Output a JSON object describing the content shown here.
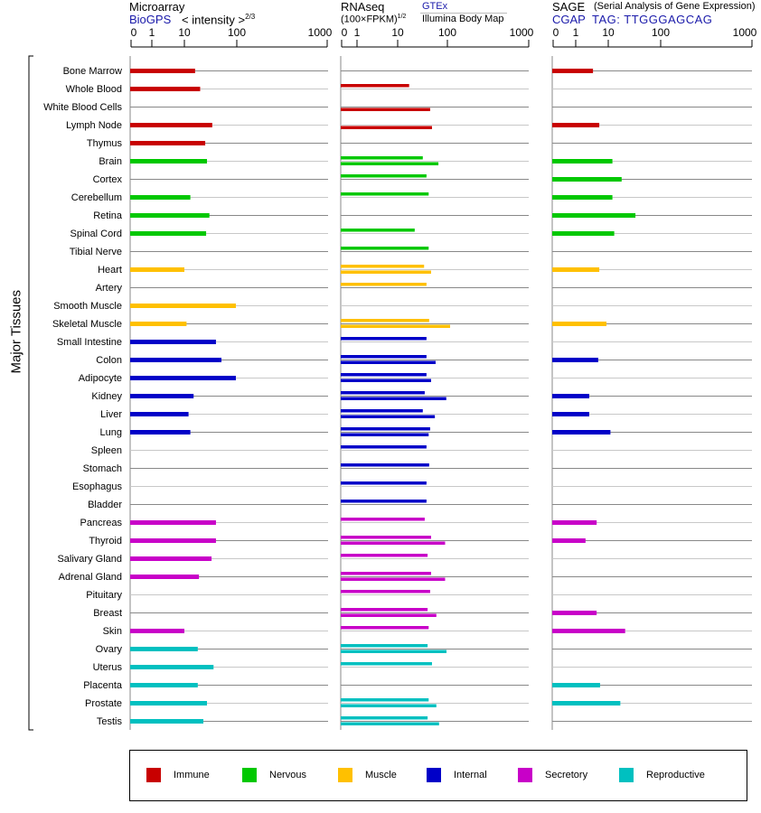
{
  "chart_data": {
    "type": "bar",
    "ylabel": "Major Tissues",
    "categories": [
      "Bone Marrow",
      "Whole Blood",
      "White Blood Cells",
      "Lymph Node",
      "Thymus",
      "Brain",
      "Cortex",
      "Cerebellum",
      "Retina",
      "Spinal Cord",
      "Tibial Nerve",
      "Heart",
      "Artery",
      "Smooth Muscle",
      "Skeletal Muscle",
      "Small Intestine",
      "Colon",
      "Adipocyte",
      "Kidney",
      "Liver",
      "Lung",
      "Spleen",
      "Stomach",
      "Esophagus",
      "Bladder",
      "Pancreas",
      "Thyroid",
      "Salivary Gland",
      "Adrenal Gland",
      "Pituitary",
      "Breast",
      "Skin",
      "Ovary",
      "Uterus",
      "Placenta",
      "Prostate",
      "Testis"
    ],
    "groups": [
      "Immune",
      "Immune",
      "Immune",
      "Immune",
      "Immune",
      "Nervous",
      "Nervous",
      "Nervous",
      "Nervous",
      "Nervous",
      "Nervous",
      "Muscle",
      "Muscle",
      "Muscle",
      "Muscle",
      "Internal",
      "Internal",
      "Internal",
      "Internal",
      "Internal",
      "Internal",
      "Internal",
      "Internal",
      "Internal",
      "Internal",
      "Secretory",
      "Secretory",
      "Secretory",
      "Secretory",
      "Secretory",
      "Secretory",
      "Secretory",
      "Reproductive",
      "Reproductive",
      "Reproductive",
      "Reproductive",
      "Reproductive"
    ],
    "ticks": [
      0,
      1,
      10,
      100,
      1000
    ],
    "xlim": [
      0,
      1000
    ],
    "panels": [
      {
        "id": "microarray",
        "title": "Microarray",
        "source": "BioGPS",
        "unit": "< intensity >",
        "unit_exp": "2/3",
        "series": [
          {
            "name": "BioGPS",
            "values": [
              16,
              20,
              null,
              34,
              25,
              27,
              null,
              13,
              30,
              26,
              null,
              10,
              null,
              96,
              11,
              40,
              51,
              96,
              15,
              12,
              13,
              null,
              null,
              null,
              null,
              40,
              40,
              33,
              19,
              null,
              null,
              10,
              18,
              36,
              18,
              27,
              23
            ]
          }
        ]
      },
      {
        "id": "rnaseq",
        "title": "RNAseq",
        "unit": "(100×FPKM)",
        "unit_exp": "1/2",
        "source": "GTEx",
        "source2": "Illumina Body Map",
        "series": [
          {
            "name": "GTEx",
            "values": [
              null,
              17,
              null,
              null,
              null,
              32,
              38,
              42,
              null,
              22,
              42,
              34,
              38,
              null,
              43,
              38,
              38,
              38,
              35,
              32,
              45,
              38,
              43,
              38,
              38,
              35,
              47,
              40,
              47,
              45,
              40,
              42,
              40,
              49,
              null,
              42,
              40
            ]
          },
          {
            "name": "Illumina Body Map",
            "values": [
              null,
              null,
              45,
              49,
              null,
              66,
              null,
              null,
              null,
              null,
              null,
              47,
              null,
              null,
              108,
              null,
              58,
              47,
              95,
              56,
              42,
              null,
              null,
              null,
              null,
              null,
              90,
              null,
              90,
              null,
              60,
              null,
              96,
              null,
              null,
              60,
              68
            ]
          }
        ]
      },
      {
        "id": "sage",
        "title": "SAGE",
        "subtitle": "(Serial Analysis of Gene Expression)",
        "source": "CGAP",
        "tag": "TAG: TTGGGAGCAG",
        "series": [
          {
            "name": "SAGE",
            "values": [
              3.4,
              null,
              null,
              5.3,
              null,
              12,
              18,
              12,
              33,
              13,
              null,
              5.3,
              null,
              null,
              8.8,
              null,
              4.9,
              null,
              2.6,
              2.6,
              11,
              null,
              null,
              null,
              null,
              4.4,
              2,
              null,
              null,
              null,
              4.4,
              21,
              null,
              null,
              5.6,
              17,
              null
            ]
          }
        ]
      }
    ],
    "legend": [
      {
        "label": "Immune",
        "color": "#c80000"
      },
      {
        "label": "Nervous",
        "color": "#00c800"
      },
      {
        "label": "Muscle",
        "color": "#ffc000"
      },
      {
        "label": "Internal",
        "color": "#0000c8"
      },
      {
        "label": "Secretory",
        "color": "#c800c8"
      },
      {
        "label": "Reproductive",
        "color": "#00c0c0"
      }
    ],
    "legend_placement": "bottom"
  }
}
